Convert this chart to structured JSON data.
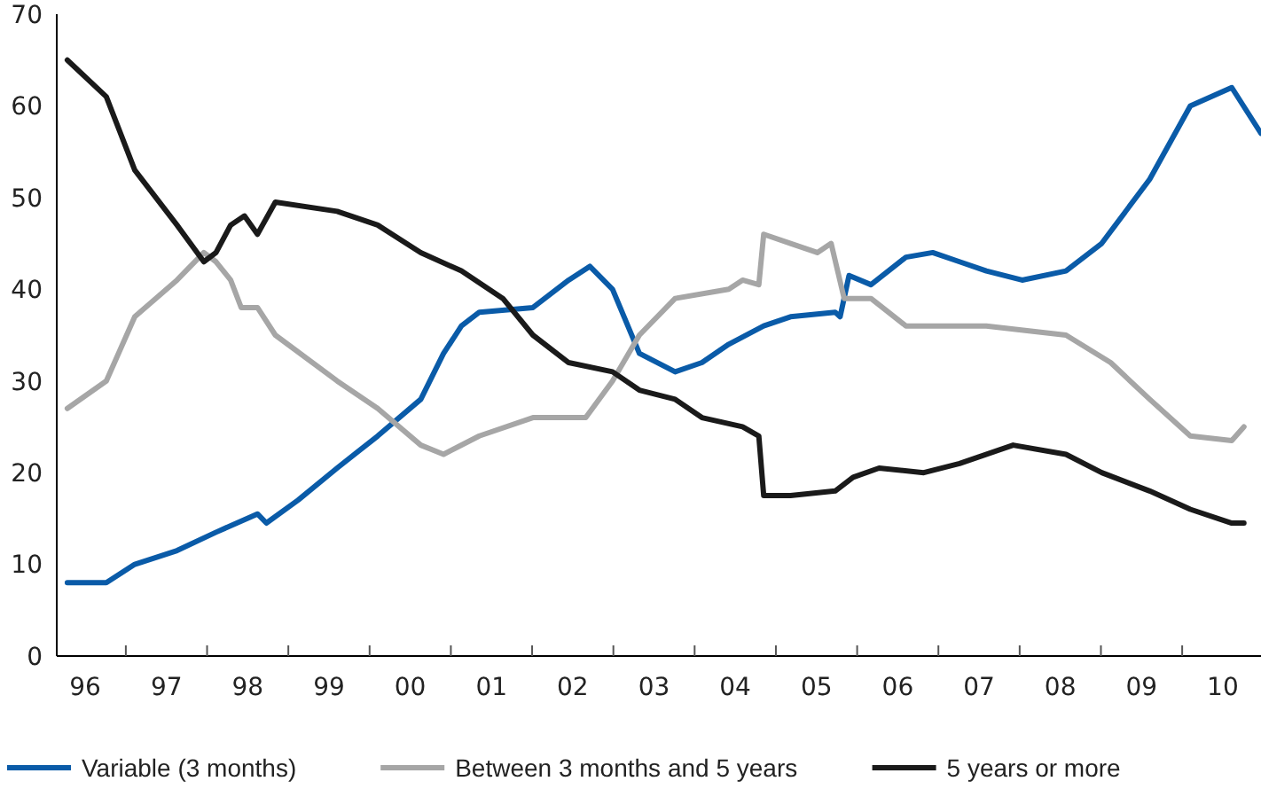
{
  "chart_data": {
    "type": "line",
    "xlim": [
      1995.65,
      2010.47
    ],
    "ylim": [
      0,
      70
    ],
    "yticks": [
      0,
      10,
      20,
      30,
      40,
      50,
      60,
      70
    ],
    "xticks": [
      {
        "value": 1996,
        "label": "96"
      },
      {
        "value": 1997,
        "label": "97"
      },
      {
        "value": 1998,
        "label": "98"
      },
      {
        "value": 1999,
        "label": "99"
      },
      {
        "value": 2000,
        "label": "00"
      },
      {
        "value": 2001,
        "label": "01"
      },
      {
        "value": 2002,
        "label": "02"
      },
      {
        "value": 2003,
        "label": "03"
      },
      {
        "value": 2004,
        "label": "04"
      },
      {
        "value": 2005,
        "label": "05"
      },
      {
        "value": 2006,
        "label": "06"
      },
      {
        "value": 2007,
        "label": "07"
      },
      {
        "value": 2008,
        "label": "08"
      },
      {
        "value": 2009,
        "label": "09"
      },
      {
        "value": 2010,
        "label": "10"
      }
    ],
    "grid": false,
    "legend": "bottom",
    "marker": "none",
    "line_style": "solid",
    "series": [
      {
        "name": "Variable (3 months)",
        "color": "#0a5ba8",
        "x": [
          1995.78,
          1996.26,
          1996.61,
          1997.13,
          1997.61,
          1998.12,
          1998.23,
          1998.62,
          1999.1,
          1999.6,
          2000.13,
          2000.41,
          2000.63,
          2000.85,
          2001.51,
          2001.95,
          2002.21,
          2002.49,
          2002.82,
          2003.26,
          2003.59,
          2003.92,
          2004.35,
          2004.68,
          2005.23,
          2005.29,
          2005.4,
          2005.67,
          2006.1,
          2006.43,
          2006.76,
          2007.09,
          2007.53,
          2008.07,
          2008.51,
          2009.1,
          2009.6,
          2010.11,
          2010.47
        ],
        "values": [
          8,
          8,
          10,
          11.5,
          13.5,
          15.5,
          14.5,
          17,
          20.5,
          24,
          28,
          33,
          36,
          37.5,
          38,
          41,
          42.5,
          40,
          33,
          31,
          32,
          34,
          36,
          37,
          37.5,
          37,
          41.5,
          40.5,
          43.5,
          44,
          43,
          42,
          41,
          42,
          45,
          52,
          60,
          62,
          57
        ]
      },
      {
        "name": "Between 3 months and 5 years",
        "color": "#a6a6a6",
        "x": [
          1995.78,
          1996.26,
          1996.61,
          1997.13,
          1997.46,
          1997.61,
          1997.79,
          1997.92,
          1998.12,
          1998.34,
          1999.1,
          1999.6,
          2000.13,
          2000.41,
          2000.85,
          2001.51,
          2002.16,
          2002.49,
          2002.82,
          2003.26,
          2003.92,
          2004.09,
          2004.29,
          2004.35,
          2004.68,
          2005.01,
          2005.18,
          2005.34,
          2005.67,
          2006.1,
          2007.09,
          2008.07,
          2008.62,
          2009.1,
          2009.6,
          2010.11,
          2010.26
        ],
        "values": [
          27,
          30,
          37,
          41,
          44,
          43,
          41,
          38,
          38,
          35,
          30,
          27,
          23,
          22,
          24,
          26,
          26,
          30,
          35,
          39,
          40,
          41,
          40.5,
          46,
          45,
          44,
          45,
          39,
          39,
          36,
          36,
          35,
          32,
          28,
          24,
          23.5,
          25
        ]
      },
      {
        "name": "5 years or more",
        "color": "#1a1a1a",
        "x": [
          1995.78,
          1996.26,
          1996.61,
          1997.13,
          1997.46,
          1997.61,
          1997.79,
          1997.96,
          1998.12,
          1998.34,
          1999.1,
          1999.6,
          2000.13,
          2000.63,
          2001.14,
          2001.51,
          2001.95,
          2002.49,
          2002.82,
          2003.26,
          2003.59,
          2004.09,
          2004.29,
          2004.35,
          2004.68,
          2005.23,
          2005.45,
          2005.77,
          2006.32,
          2006.76,
          2007.42,
          2008.07,
          2008.51,
          2009.1,
          2009.6,
          2010.11,
          2010.26
        ],
        "values": [
          65,
          61,
          53,
          47,
          43,
          44,
          47,
          48,
          46,
          49.5,
          48.5,
          47,
          44,
          42,
          39,
          35,
          32,
          31,
          29,
          28,
          26,
          25,
          24,
          17.5,
          17.5,
          18,
          19.5,
          20.5,
          20,
          21,
          23,
          22,
          20,
          18,
          16,
          14.5,
          14.5
        ]
      }
    ]
  }
}
